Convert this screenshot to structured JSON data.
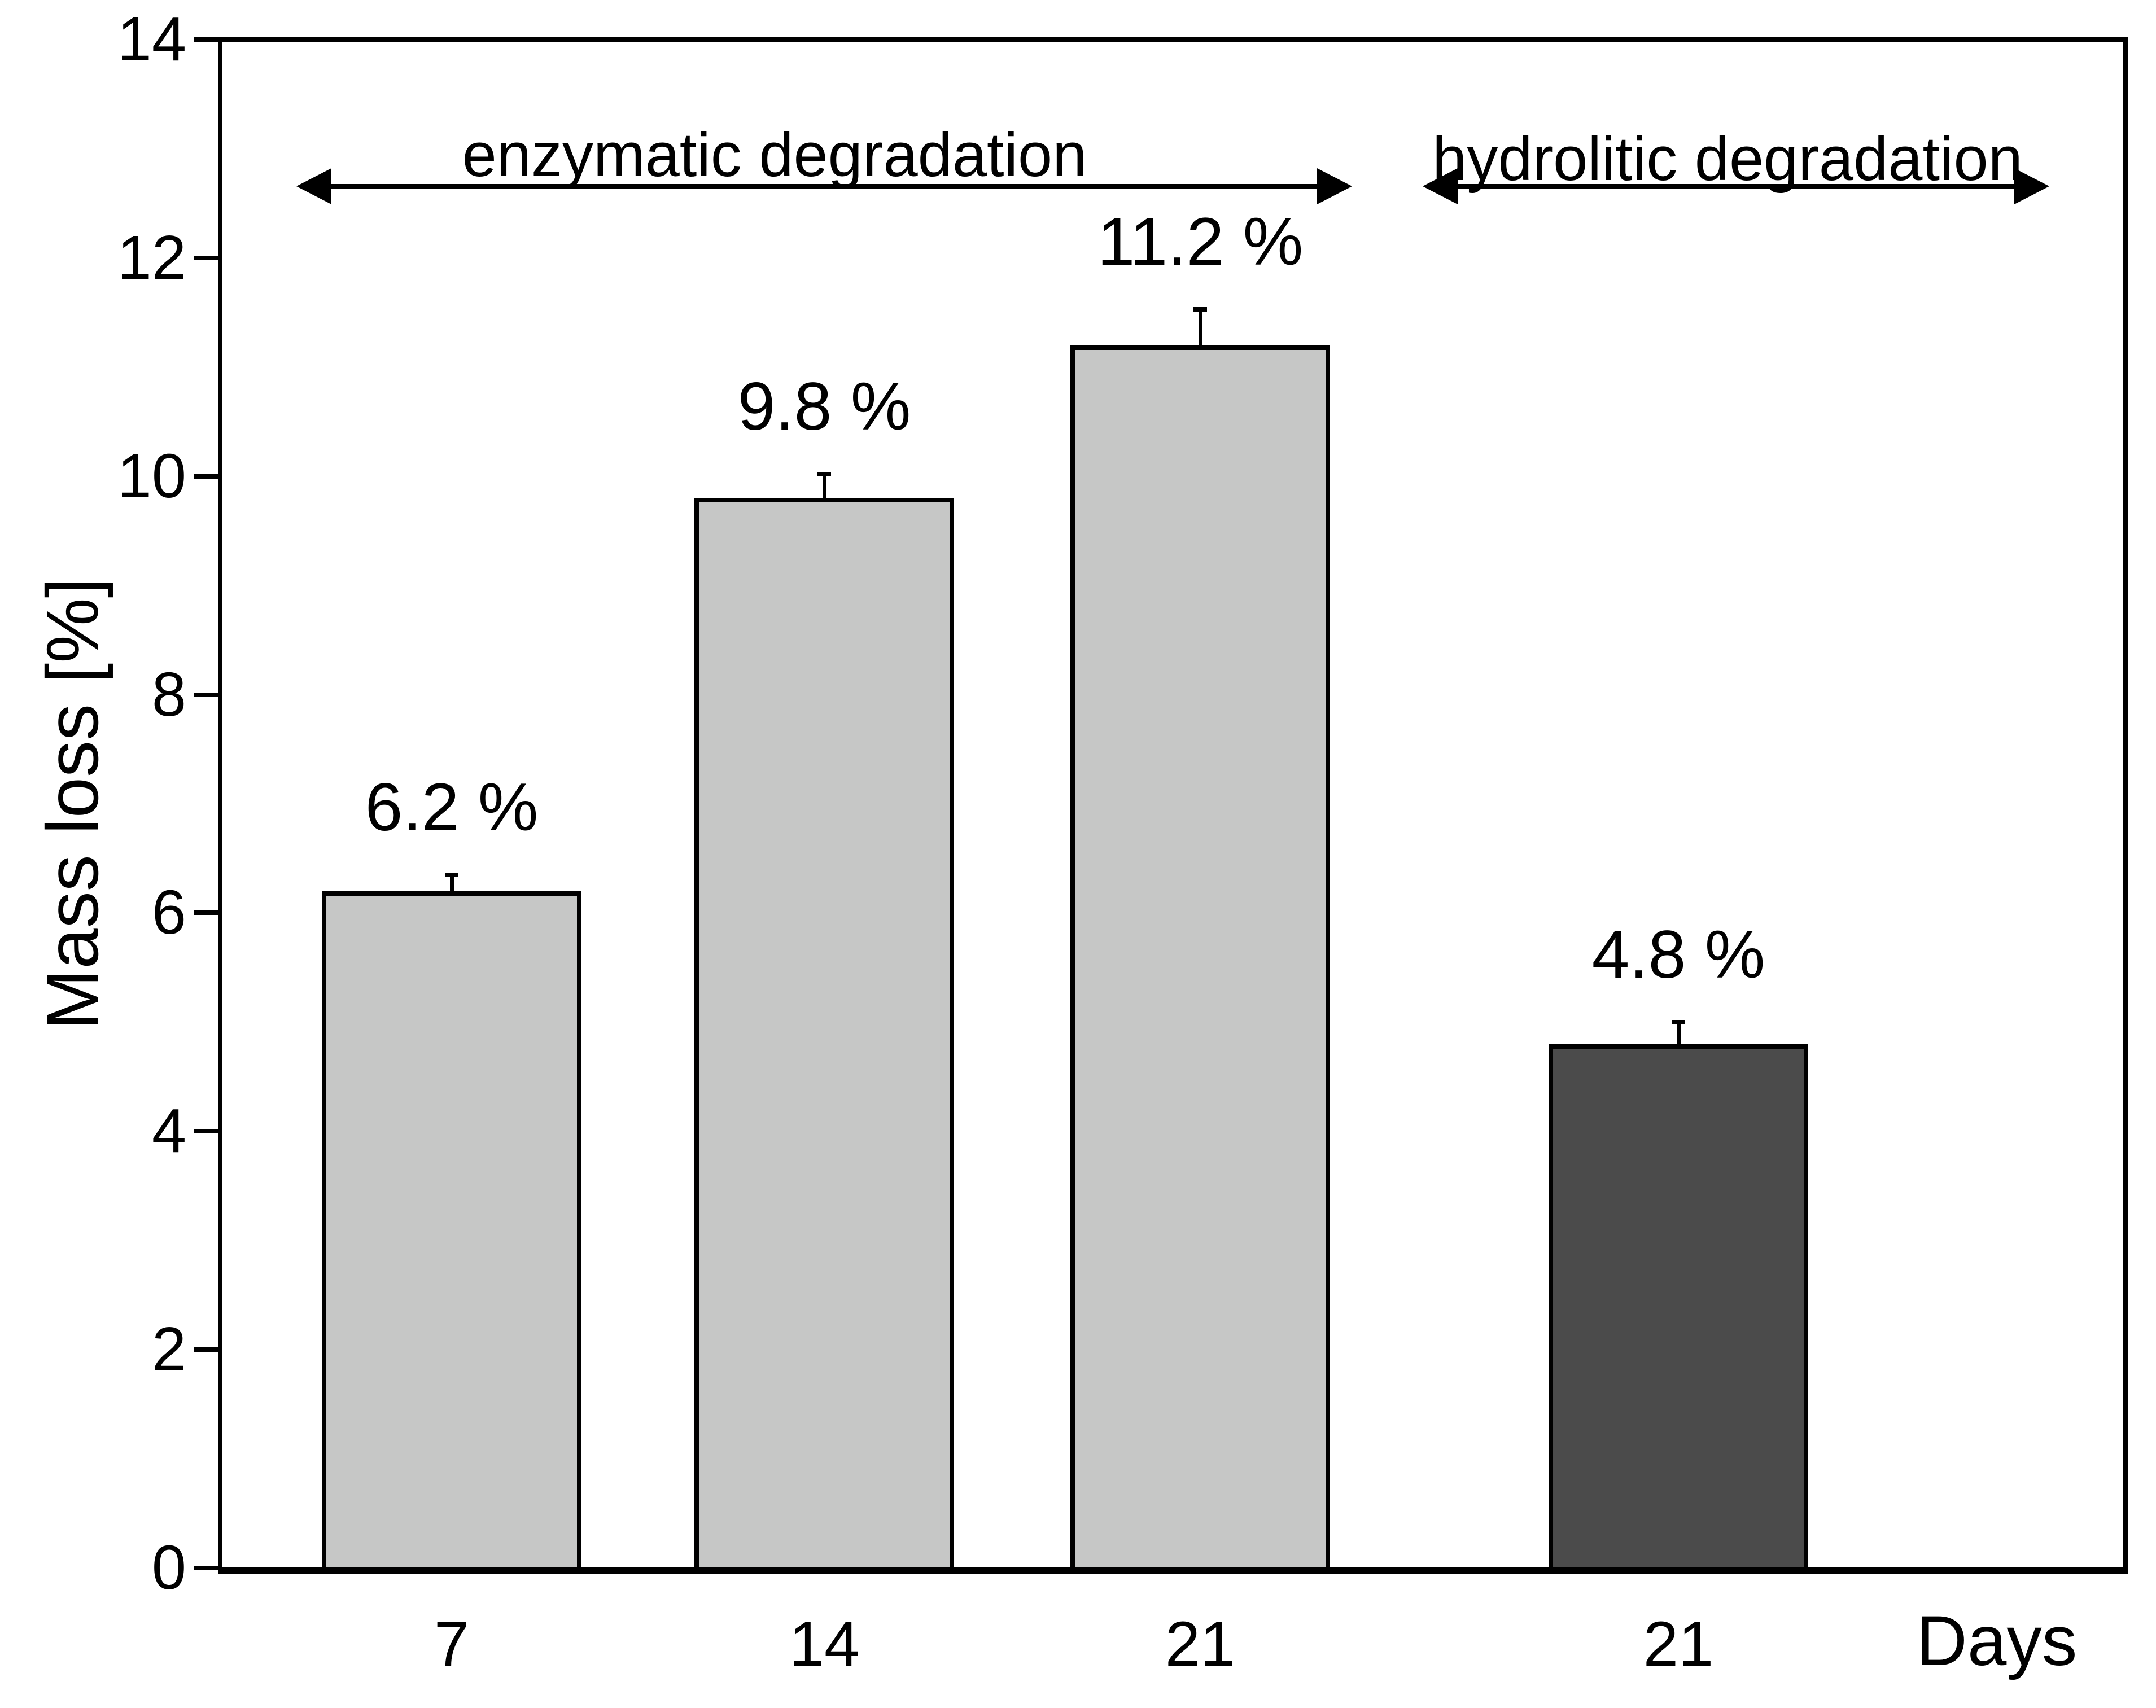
{
  "figure": {
    "background_color": "#ffffff",
    "line_color": "#000000"
  },
  "chart_data": {
    "type": "bar",
    "title": "",
    "xlabel": "Days",
    "ylabel": "Mass loss [%]",
    "ylim": [
      0,
      14
    ],
    "yticks": [
      "0",
      "2",
      "4",
      "6",
      "8",
      "10",
      "12",
      "14"
    ],
    "grid": false,
    "legend": "none",
    "categories": [
      "7",
      "14",
      "21",
      "21"
    ],
    "values": [
      6.2,
      9.8,
      11.2,
      4.8
    ],
    "errors": [
      0.15,
      0.22,
      0.33,
      0.2
    ],
    "bar_value_labels": [
      "6.2 %",
      "9.8 %",
      "11.2 %",
      "4.8 %"
    ],
    "bar_colors": [
      "#c6c7c6",
      "#c6c7c6",
      "#c6c7c6",
      "#4b4b4b"
    ],
    "bar_outline_color": "#000000",
    "range_annotations": [
      {
        "label": "enzymatic degradation",
        "bars": [
          0,
          1,
          2
        ]
      },
      {
        "label": "hydrolitic degradation",
        "bars": [
          3
        ]
      }
    ]
  }
}
